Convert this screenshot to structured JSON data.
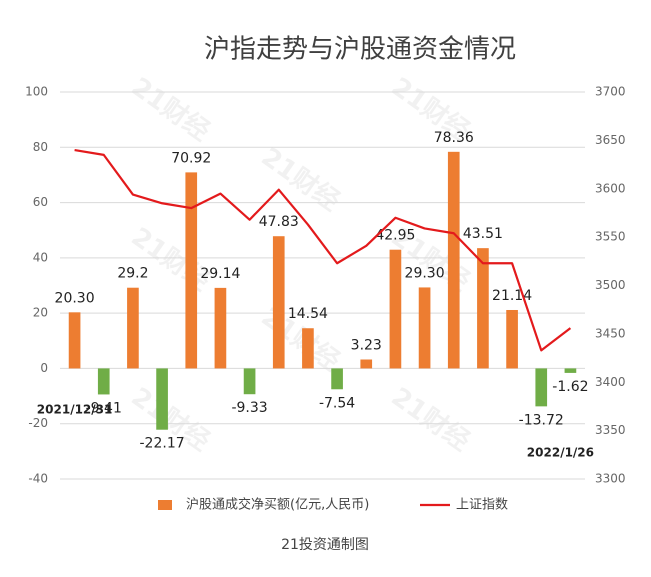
{
  "chart_data": {
    "type": "bar",
    "title": "沪指走势与沪股通资金情况",
    "caption": "21投资通制图",
    "watermark": "21财经",
    "categories": [
      "2021/12/31",
      null,
      null,
      null,
      null,
      null,
      null,
      null,
      null,
      null,
      null,
      null,
      null,
      null,
      null,
      null,
      null,
      "2022/1/26"
    ],
    "series": [
      {
        "name": "沪股通成交净买额(亿元,人民币)",
        "color": "#ed7d31",
        "negative_color": "#70ad47",
        "values": [
          20.3,
          -9.41,
          29.2,
          -22.17,
          70.92,
          29.14,
          -9.33,
          47.83,
          14.54,
          -7.54,
          3.23,
          42.95,
          29.3,
          78.36,
          43.51,
          21.14,
          -13.72,
          -1.62
        ],
        "value_labels": [
          "20.30",
          "-9.41",
          "29.2",
          "-22.17",
          "70.92",
          "29.14",
          "-9.33",
          "47.83",
          "14.54",
          "-7.54",
          "3.23",
          "42.95",
          "29.30",
          "78.36",
          "43.51",
          "21.14",
          "-13.72",
          "-1.62"
        ]
      },
      {
        "name": "上证指数",
        "type": "line",
        "axis": "y2",
        "color": "#e31a1c",
        "values": [
          3640,
          3635,
          3594,
          3585,
          3580,
          3595,
          3568,
          3599,
          3563,
          3523,
          3541,
          3570,
          3559,
          3554,
          3523,
          3523,
          3433,
          3456
        ]
      }
    ],
    "ylim": [
      -40,
      100
    ],
    "yticks": [
      -40,
      -20,
      0,
      20,
      40,
      60,
      80,
      100
    ],
    "y2lim": [
      3300,
      3700
    ],
    "y2ticks": [
      3300,
      3350,
      3400,
      3450,
      3500,
      3550,
      3600,
      3650,
      3700
    ],
    "grid": true,
    "legend": "bottom"
  }
}
